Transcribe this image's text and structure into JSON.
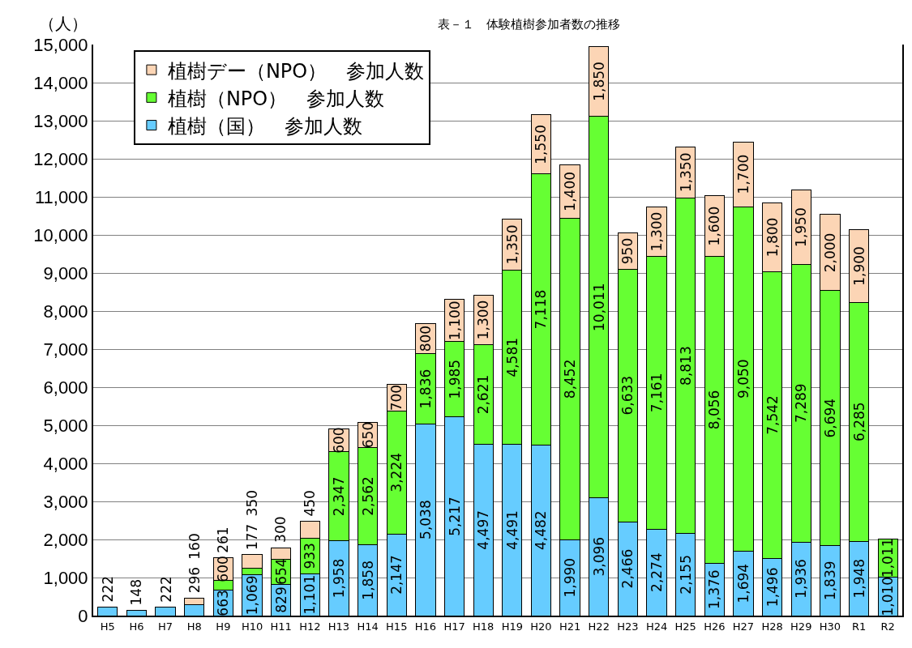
{
  "chart_data": {
    "type": "bar",
    "title": "表－１　体験植樹参加者数の推移",
    "ylabel": "（人）",
    "categories": [
      "H5",
      "H6",
      "H7",
      "H8",
      "H9",
      "H10",
      "H11",
      "H12",
      "H13",
      "H14",
      "H15",
      "H16",
      "H17",
      "H18",
      "H19",
      "H20",
      "H21",
      "H22",
      "H23",
      "H24",
      "H25",
      "H26",
      "H27",
      "H28",
      "H29",
      "H30",
      "R1",
      "R2"
    ],
    "stacked": true,
    "grid": "y",
    "legend": "top left",
    "ylim": [
      0,
      15000
    ],
    "yticks": [
      {
        "value": 0,
        "label": "0"
      },
      {
        "value": 1000,
        "label": "1,000"
      },
      {
        "value": 2000,
        "label": "2,000"
      },
      {
        "value": 3000,
        "label": "3,000"
      },
      {
        "value": 4000,
        "label": "4,000"
      },
      {
        "value": 5000,
        "label": "5,000"
      },
      {
        "value": 6000,
        "label": "6,000"
      },
      {
        "value": 7000,
        "label": "7,000"
      },
      {
        "value": 8000,
        "label": "8,000"
      },
      {
        "value": 9000,
        "label": "9,000"
      },
      {
        "value": 10000,
        "label": "10,000"
      },
      {
        "value": 11000,
        "label": "11,000"
      },
      {
        "value": 12000,
        "label": "12,000"
      },
      {
        "value": 13000,
        "label": "13,000"
      },
      {
        "value": 14000,
        "label": "14,000"
      },
      {
        "value": 15000,
        "label": "15,000"
      }
    ],
    "series": [
      {
        "name": "植樹（国）　参加人数",
        "color": "#66ccff",
        "values": [
          222,
          148,
          222,
          296,
          663,
          1069,
          829,
          1101,
          1958,
          1858,
          2147,
          5038,
          5217,
          4497,
          4491,
          4482,
          1990,
          3096,
          2466,
          2274,
          2155,
          1376,
          1694,
          1496,
          1936,
          1839,
          1948,
          1010
        ],
        "value_labels": [
          "222",
          "148",
          "222",
          "296",
          "663",
          "1,069",
          "829",
          "1,101",
          "1,958",
          "1,858",
          "2,147",
          "5,038",
          "5,217",
          "4,497",
          "4,491",
          "4,482",
          "1,990",
          "3,096",
          "2,466",
          "2,274",
          "2,155",
          "1,376",
          "1,694",
          "1,496",
          "1,936",
          "1,839",
          "1,948",
          "1,010"
        ]
      },
      {
        "name": "植樹（NPO）　参加人数",
        "color": "#66ff33",
        "values": [
          null,
          null,
          null,
          null,
          261,
          177,
          654,
          933,
          2347,
          2562,
          3224,
          1836,
          1985,
          2621,
          4581,
          7118,
          8452,
          10011,
          6633,
          7161,
          8813,
          8056,
          9050,
          7542,
          7289,
          6694,
          6285,
          1011
        ],
        "value_labels": [
          null,
          null,
          null,
          null,
          "261",
          "177",
          "654",
          "933",
          "2,347",
          "2,562",
          "3,224",
          "1,836",
          "1,985",
          "2,621",
          "4,581",
          "7,118",
          "8,452",
          "10,011",
          "6,633",
          "7,161",
          "8,813",
          "8,056",
          "9,050",
          "7,542",
          "7,289",
          "6,694",
          "6,285",
          "1,011"
        ]
      },
      {
        "name": "植樹デー（NPO）　参加人数",
        "color": "#fcd5b5",
        "values": [
          null,
          null,
          null,
          160,
          600,
          350,
          300,
          450,
          600,
          650,
          700,
          800,
          1100,
          1300,
          1350,
          1550,
          1400,
          1850,
          950,
          1300,
          1350,
          1600,
          1700,
          1800,
          1950,
          2000,
          1900,
          null
        ],
        "value_labels": [
          null,
          null,
          null,
          "160",
          "600",
          "350",
          "300",
          "450",
          "600",
          "650",
          "700",
          "800",
          "1,100",
          "1,300",
          "1,350",
          "1,550",
          "1,400",
          "1,850",
          "950",
          "1,300",
          "1,350",
          "1,600",
          "1,700",
          "1,800",
          "1,950",
          "2,000",
          "1,900",
          null
        ]
      }
    ]
  }
}
